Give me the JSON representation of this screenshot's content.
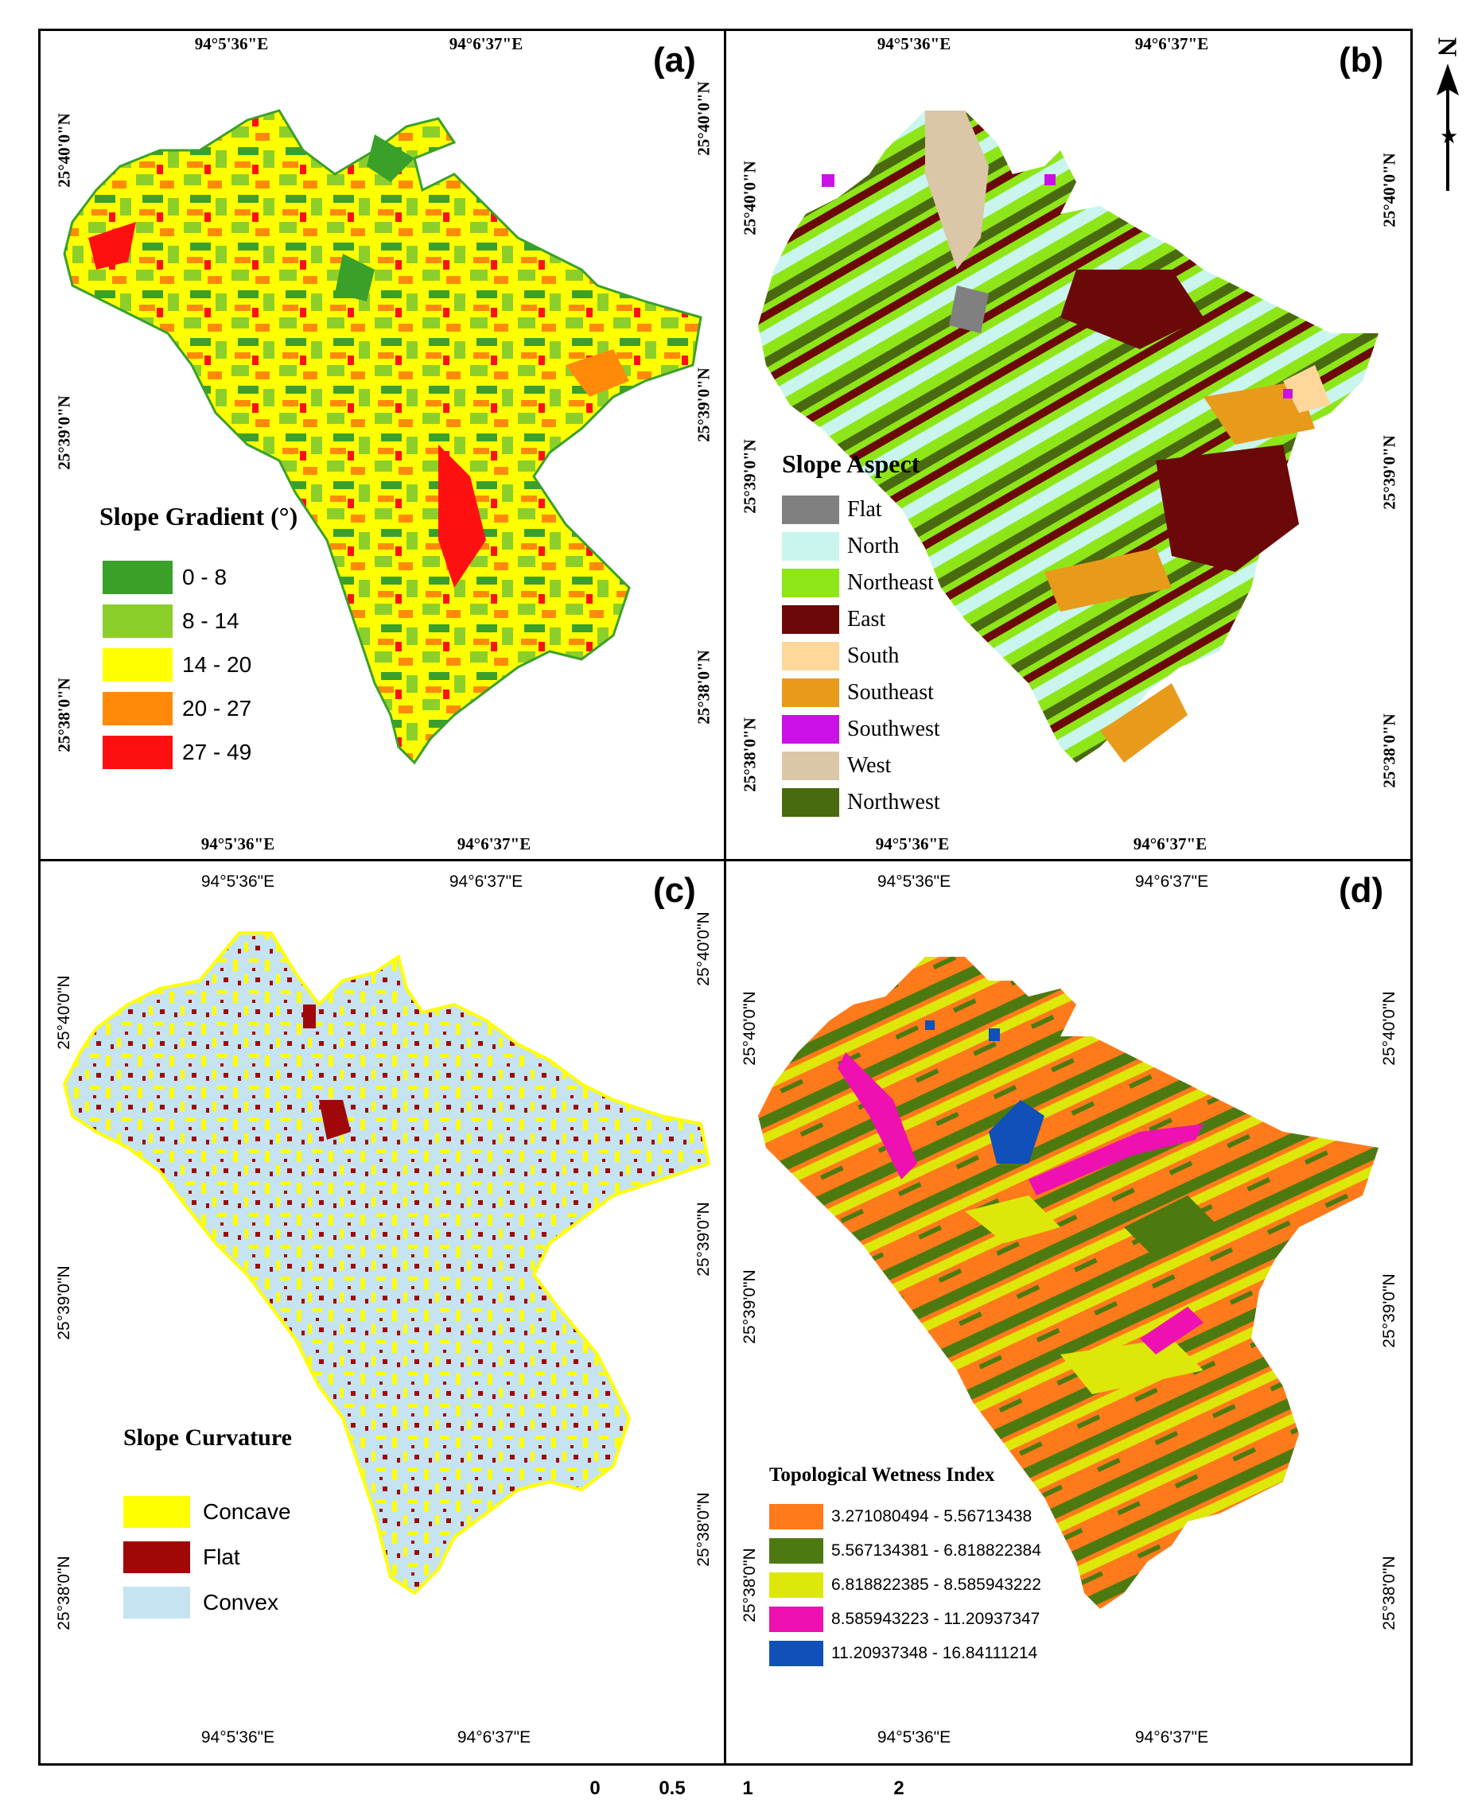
{
  "colors": {
    "gradient": [
      "#3aa02a",
      "#8ccf2a",
      "#ffff00",
      "#ff8a0a",
      "#ff1010"
    ],
    "aspect": [
      "#808080",
      "#c9f5ee",
      "#8ee619",
      "#6b0808",
      "#ffd79a",
      "#e89a1a",
      "#cc10e8",
      "#dcc6a8",
      "#4a6a10"
    ],
    "curvature": [
      "#ffff00",
      "#a00808",
      "#c5e3f0"
    ],
    "twi": [
      "#ff7a1a",
      "#4d7a10",
      "#dde80a",
      "#ee10b0",
      "#1050b8"
    ]
  },
  "panels": {
    "a": {
      "label": "(a)",
      "top_x": [
        "94°5'36\"E",
        "94°6'37\"E"
      ],
      "bottom_x": [
        "94°5'36\"E",
        "94°6'37\"E"
      ],
      "left_y": [
        "25°40'0\"N",
        "25°39'0\"N",
        "25°38'0\"N"
      ],
      "right_y": [
        "25°40'0\"N",
        "25°39'0\"N",
        "25°38'0\"N"
      ],
      "legend": {
        "title": "Slope Gradient (°)",
        "items": [
          "0 - 8",
          "8 - 14",
          "14 - 20",
          "20 - 27",
          "27 - 49"
        ]
      }
    },
    "b": {
      "label": "(b)",
      "top_x": [
        "94°5'36\"E",
        "94°6'37\"E"
      ],
      "bottom_x": [
        "94°5'36\"E",
        "94°6'37\"E"
      ],
      "left_y": [
        "25°40'0\"N",
        "25°39'0\"N",
        "25°38'0\"N"
      ],
      "right_y": [
        "25°40'0\"N",
        "25°39'0\"N",
        "25°38'0\"N"
      ],
      "legend": {
        "title": "Slope Aspect",
        "items": [
          "Flat",
          "North",
          "Northeast",
          "East",
          "South",
          "Southeast",
          "Southwest",
          "West",
          "Northwest"
        ]
      }
    },
    "c": {
      "label": "(c)",
      "top_x": [
        "94°5'36\"E",
        "94°6'37\"E"
      ],
      "bottom_x": [
        "94°5'36\"E",
        "94°6'37\"E"
      ],
      "left_y": [
        "25°40'0\"N",
        "25°39'0\"N",
        "25°38'0\"N"
      ],
      "right_y": [
        "25°40'0\"N",
        "25°39'0\"N",
        "25°38'0\"N"
      ],
      "legend": {
        "title": "Slope Curvature",
        "items": [
          "Concave",
          "Flat",
          "Convex"
        ]
      }
    },
    "d": {
      "label": "(d)",
      "top_x": [
        "94°5'36\"E",
        "94°6'37\"E"
      ],
      "bottom_x": [
        "94°5'36\"E",
        "94°6'37\"E"
      ],
      "left_y": [
        "25°40'0\"N",
        "25°39'0\"N",
        "25°38'0\"N"
      ],
      "right_y": [
        "25°40'0\"N",
        "25°39'0\"N",
        "25°38'0\"N"
      ],
      "legend": {
        "title": "Topological Wetness Index",
        "items": [
          "3.271080494 - 5.56713438",
          "5.567134381 - 6.818822384",
          "6.818822385 - 8.585943222",
          "8.585943223 - 11.20937347",
          "11.20937348 - 16.84111214"
        ]
      }
    }
  },
  "north_arrow": {
    "label": "N"
  },
  "scale_bar": {
    "ticks": [
      "0",
      "0.5",
      "1",
      "2"
    ]
  }
}
